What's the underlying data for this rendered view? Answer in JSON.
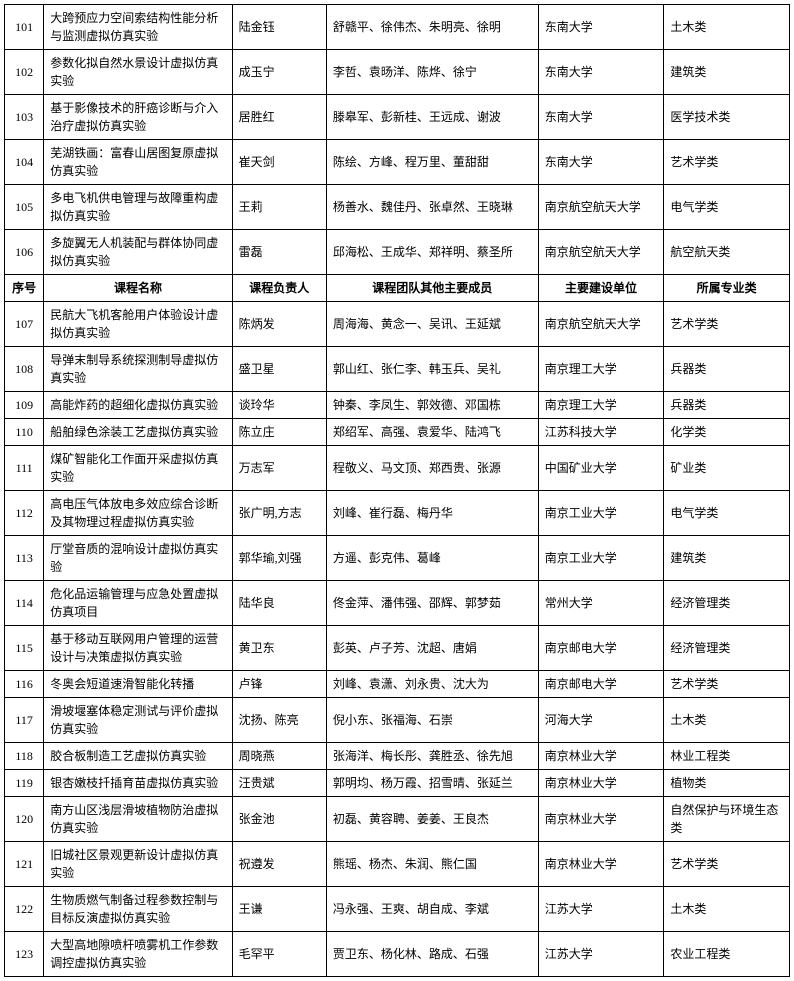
{
  "header": {
    "seq": "序号",
    "name": "课程名称",
    "lead": "课程负责人",
    "team": "课程团队其他主要成员",
    "unit": "主要建设单位",
    "cat": "所属专业类"
  },
  "group1": [
    {
      "seq": "101",
      "name": "大跨预应力空间索结构性能分析与监测虚拟仿真实验",
      "lead": "陆金钰",
      "team": "舒赣平、徐伟杰、朱明亮、徐明",
      "unit": "东南大学",
      "cat": "土木类"
    },
    {
      "seq": "102",
      "name": "参数化拟自然水景设计虚拟仿真实验",
      "lead": "成玉宁",
      "team": "李哲、袁旸洋、陈烨、徐宁",
      "unit": "东南大学",
      "cat": "建筑类"
    },
    {
      "seq": "103",
      "name": "基于影像技术的肝癌诊断与介入治疗虚拟仿真实验",
      "lead": "居胜红",
      "team": "滕皋军、彭新桂、王远成、谢波",
      "unit": "东南大学",
      "cat": "医学技术类"
    },
    {
      "seq": "104",
      "name": "芜湖铁画：富春山居图复原虚拟仿真实验",
      "lead": "崔天剑",
      "team": "陈绘、方峰、程万里、董甜甜",
      "unit": "东南大学",
      "cat": "艺术学类"
    },
    {
      "seq": "105",
      "name": "多电飞机供电管理与故障重构虚拟仿真实验",
      "lead": "王莉",
      "team": "杨善水、魏佳丹、张卓然、王晓琳",
      "unit": "南京航空航天大学",
      "cat": "电气学类"
    },
    {
      "seq": "106",
      "name": "多旋翼无人机装配与群体协同虚拟仿真实验",
      "lead": "雷磊",
      "team": "邱海松、王成华、郑祥明、蔡圣所",
      "unit": "南京航空航天大学",
      "cat": "航空航天类"
    }
  ],
  "group2": [
    {
      "seq": "107",
      "name": "民航大飞机客舱用户体验设计虚拟仿真实验",
      "lead": "陈炳发",
      "team": "周海海、黄念一、吴讯、王延斌",
      "unit": "南京航空航天大学",
      "cat": "艺术学类"
    },
    {
      "seq": "108",
      "name": "导弹末制导系统探测制导虚拟仿真实验",
      "lead": "盛卫星",
      "team": "郭山红、张仁李、韩玉兵、吴礼",
      "unit": "南京理工大学",
      "cat": "兵器类"
    },
    {
      "seq": "109",
      "name": "高能炸药的超细化虚拟仿真实验",
      "lead": "谈玲华",
      "team": "钟秦、李凤生、郭效德、邓国栋",
      "unit": "南京理工大学",
      "cat": "兵器类"
    },
    {
      "seq": "110",
      "name": "船舶绿色涂装工艺虚拟仿真实验",
      "lead": "陈立庄",
      "team": "郑绍军、高强、袁爱华、陆鸿飞",
      "unit": "江苏科技大学",
      "cat": "化学类"
    },
    {
      "seq": "111",
      "name": "煤矿智能化工作面开采虚拟仿真实验",
      "lead": "万志军",
      "team": "程敬义、马文顶、郑西贵、张源",
      "unit": "中国矿业大学",
      "cat": "矿业类"
    },
    {
      "seq": "112",
      "name": "高电压气体放电多效应综合诊断及其物理过程虚拟仿真实验",
      "lead": "张广明,方志",
      "team": "刘峰、崔行磊、梅丹华",
      "unit": "南京工业大学",
      "cat": "电气学类"
    },
    {
      "seq": "113",
      "name": "厅堂音质的混响设计虚拟仿真实验",
      "lead": "郭华瑜,刘强",
      "team": "方遥、彭克伟、葛峰",
      "unit": "南京工业大学",
      "cat": "建筑类"
    },
    {
      "seq": "114",
      "name": "危化品运输管理与应急处置虚拟仿真项目",
      "lead": "陆华良",
      "team": "佟金萍、潘伟强、邵辉、郭梦茹",
      "unit": "常州大学",
      "cat": "经济管理类"
    },
    {
      "seq": "115",
      "name": "基于移动互联网用户管理的运营设计与决策虚拟仿真实验",
      "lead": "黄卫东",
      "team": "彭英、卢子芳、沈超、唐娟",
      "unit": "南京邮电大学",
      "cat": "经济管理类"
    },
    {
      "seq": "116",
      "name": "冬奥会短道速滑智能化转播",
      "lead": "卢锋",
      "team": "刘峰、袁潇、刘永贵、沈大为",
      "unit": "南京邮电大学",
      "cat": "艺术学类"
    },
    {
      "seq": "117",
      "name": "滑坡堰塞体稳定测试与评价虚拟仿真实验",
      "lead": "沈扬、陈亮",
      "team": "倪小东、张福海、石崇",
      "unit": "河海大学",
      "cat": "土木类"
    },
    {
      "seq": "118",
      "name": "胶合板制造工艺虚拟仿真实验",
      "lead": "周晓燕",
      "team": "张海洋、梅长彤、龚胜丞、徐先旭",
      "unit": "南京林业大学",
      "cat": "林业工程类"
    },
    {
      "seq": "119",
      "name": "银杏嫩枝扦插育苗虚拟仿真实验",
      "lead": "汪贵斌",
      "team": "郭明均、杨万霞、招雪晴、张延兰",
      "unit": "南京林业大学",
      "cat": "植物类"
    },
    {
      "seq": "120",
      "name": "南方山区浅层滑坡植物防治虚拟仿真实验",
      "lead": "张金池",
      "team": "初磊、黄容聘、姜姜、王良杰",
      "unit": "南京林业大学",
      "cat": "自然保护与环境生态类"
    },
    {
      "seq": "121",
      "name": "旧城社区景观更新设计虚拟仿真实验",
      "lead": "祝遵发",
      "team": "熊瑶、杨杰、朱润、熊仁国",
      "unit": "南京林业大学",
      "cat": "艺术学类"
    },
    {
      "seq": "122",
      "name": "生物质燃气制备过程参数控制与目标反演虚拟仿真实验",
      "lead": "王谦",
      "team": "冯永强、王爽、胡自成、李斌",
      "unit": "江苏大学",
      "cat": "土木类"
    },
    {
      "seq": "123",
      "name": "大型高地隙喷杆喷雾机工作参数调控虚拟仿真实验",
      "lead": "毛罕平",
      "team": "贾卫东、杨化林、路成、石强",
      "unit": "江苏大学",
      "cat": "农业工程类"
    }
  ]
}
